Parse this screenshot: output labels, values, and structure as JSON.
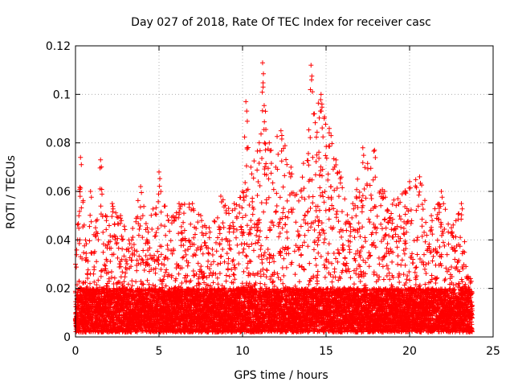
{
  "chart_data": {
    "type": "scatter",
    "title": "Day 027 of 2018, Rate Of TEC Index for receiver casc",
    "xlabel": "GPS time / hours",
    "ylabel": "ROTI / TECUs",
    "xlim": [
      0,
      25
    ],
    "ylim": [
      0,
      0.12
    ],
    "x_ticks": [
      "0",
      "5",
      "10",
      "15",
      "20",
      "25"
    ],
    "x_tick_values": [
      0,
      5,
      10,
      15,
      20,
      25
    ],
    "y_ticks": [
      "0",
      "0.02",
      "0.04",
      "0.06",
      "0.08",
      "0.1",
      "0.12"
    ],
    "y_tick_values": [
      0,
      0.02,
      0.04,
      0.06,
      0.08,
      0.1,
      0.12
    ],
    "grid": true,
    "marker": "plus",
    "series_color": "#ff0000",
    "time_span_hours": [
      0,
      23.75
    ],
    "envelope": [
      {
        "x": 0.0,
        "y": 0.03
      },
      {
        "x": 0.3,
        "y": 0.074
      },
      {
        "x": 0.6,
        "y": 0.04
      },
      {
        "x": 0.9,
        "y": 0.06
      },
      {
        "x": 1.2,
        "y": 0.045
      },
      {
        "x": 1.5,
        "y": 0.073
      },
      {
        "x": 1.8,
        "y": 0.05
      },
      {
        "x": 2.2,
        "y": 0.055
      },
      {
        "x": 2.7,
        "y": 0.05
      },
      {
        "x": 3.2,
        "y": 0.04
      },
      {
        "x": 3.9,
        "y": 0.062
      },
      {
        "x": 4.3,
        "y": 0.045
      },
      {
        "x": 5.0,
        "y": 0.068
      },
      {
        "x": 5.5,
        "y": 0.05
      },
      {
        "x": 6.2,
        "y": 0.055
      },
      {
        "x": 7.0,
        "y": 0.055
      },
      {
        "x": 7.5,
        "y": 0.05
      },
      {
        "x": 8.0,
        "y": 0.045
      },
      {
        "x": 8.7,
        "y": 0.058
      },
      {
        "x": 9.5,
        "y": 0.055
      },
      {
        "x": 10.0,
        "y": 0.06
      },
      {
        "x": 10.2,
        "y": 0.097
      },
      {
        "x": 10.5,
        "y": 0.07
      },
      {
        "x": 11.0,
        "y": 0.08
      },
      {
        "x": 11.2,
        "y": 0.113
      },
      {
        "x": 11.6,
        "y": 0.08
      },
      {
        "x": 12.3,
        "y": 0.085
      },
      {
        "x": 12.9,
        "y": 0.07
      },
      {
        "x": 13.5,
        "y": 0.06
      },
      {
        "x": 14.1,
        "y": 0.112
      },
      {
        "x": 14.3,
        "y": 0.092
      },
      {
        "x": 14.7,
        "y": 0.1
      },
      {
        "x": 15.3,
        "y": 0.083
      },
      {
        "x": 15.8,
        "y": 0.068
      },
      {
        "x": 16.6,
        "y": 0.055
      },
      {
        "x": 17.2,
        "y": 0.078
      },
      {
        "x": 17.9,
        "y": 0.077
      },
      {
        "x": 18.5,
        "y": 0.06
      },
      {
        "x": 19.3,
        "y": 0.057
      },
      {
        "x": 20.0,
        "y": 0.064
      },
      {
        "x": 20.6,
        "y": 0.066
      },
      {
        "x": 21.3,
        "y": 0.05
      },
      {
        "x": 21.9,
        "y": 0.06
      },
      {
        "x": 22.5,
        "y": 0.045
      },
      {
        "x": 23.1,
        "y": 0.055
      },
      {
        "x": 23.5,
        "y": 0.025
      }
    ],
    "baseline_range": [
      0.002,
      0.02
    ]
  }
}
